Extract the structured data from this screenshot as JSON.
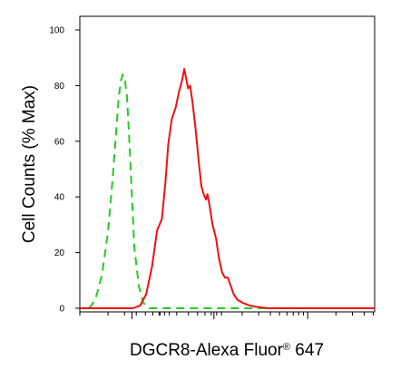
{
  "chart_data": {
    "type": "line",
    "xlabel": {
      "main": "DGCR8-Alexa Fluor",
      "mark": "®",
      "suffix": " 647"
    },
    "ylabel": "Cell Counts (% Max)",
    "ylim": [
      0,
      100
    ],
    "yticks": [
      "0",
      "20",
      "40",
      "60",
      "80",
      "100"
    ],
    "xscale": "log",
    "xlim": [
      0,
      1
    ],
    "grid": false,
    "series": [
      {
        "style": "dashed",
        "color": "#22cc22",
        "points": [
          [
            0.03,
            0
          ],
          [
            0.04,
            1
          ],
          [
            0.055,
            4
          ],
          [
            0.075,
            12
          ],
          [
            0.095,
            27
          ],
          [
            0.11,
            45
          ],
          [
            0.122,
            62
          ],
          [
            0.132,
            76
          ],
          [
            0.14,
            82
          ],
          [
            0.146,
            84
          ],
          [
            0.153,
            82
          ],
          [
            0.16,
            76
          ],
          [
            0.167,
            62
          ],
          [
            0.175,
            44
          ],
          [
            0.185,
            22
          ],
          [
            0.2,
            8
          ],
          [
            0.215,
            2
          ],
          [
            0.235,
            0
          ],
          [
            0.4,
            0
          ],
          [
            0.6,
            0
          ],
          [
            1.0,
            0
          ]
        ]
      },
      {
        "style": "solid",
        "color": "#ee1111",
        "points": [
          [
            0.0,
            0
          ],
          [
            0.18,
            0
          ],
          [
            0.205,
            1
          ],
          [
            0.225,
            5
          ],
          [
            0.245,
            15
          ],
          [
            0.262,
            28
          ],
          [
            0.278,
            32
          ],
          [
            0.29,
            45
          ],
          [
            0.3,
            59
          ],
          [
            0.312,
            68
          ],
          [
            0.325,
            72
          ],
          [
            0.337,
            78
          ],
          [
            0.347,
            82
          ],
          [
            0.354,
            86
          ],
          [
            0.36,
            83
          ],
          [
            0.367,
            79
          ],
          [
            0.374,
            80
          ],
          [
            0.382,
            74
          ],
          [
            0.392,
            65
          ],
          [
            0.402,
            54
          ],
          [
            0.412,
            44
          ],
          [
            0.42,
            41
          ],
          [
            0.428,
            39
          ],
          [
            0.433,
            41
          ],
          [
            0.44,
            37
          ],
          [
            0.45,
            30
          ],
          [
            0.462,
            25
          ],
          [
            0.472,
            18
          ],
          [
            0.482,
            13
          ],
          [
            0.492,
            11
          ],
          [
            0.502,
            11
          ],
          [
            0.512,
            8
          ],
          [
            0.522,
            5
          ],
          [
            0.535,
            3
          ],
          [
            0.552,
            2
          ],
          [
            0.575,
            1
          ],
          [
            0.6,
            0.5
          ],
          [
            0.64,
            0
          ],
          [
            1.0,
            0
          ]
        ]
      }
    ]
  }
}
